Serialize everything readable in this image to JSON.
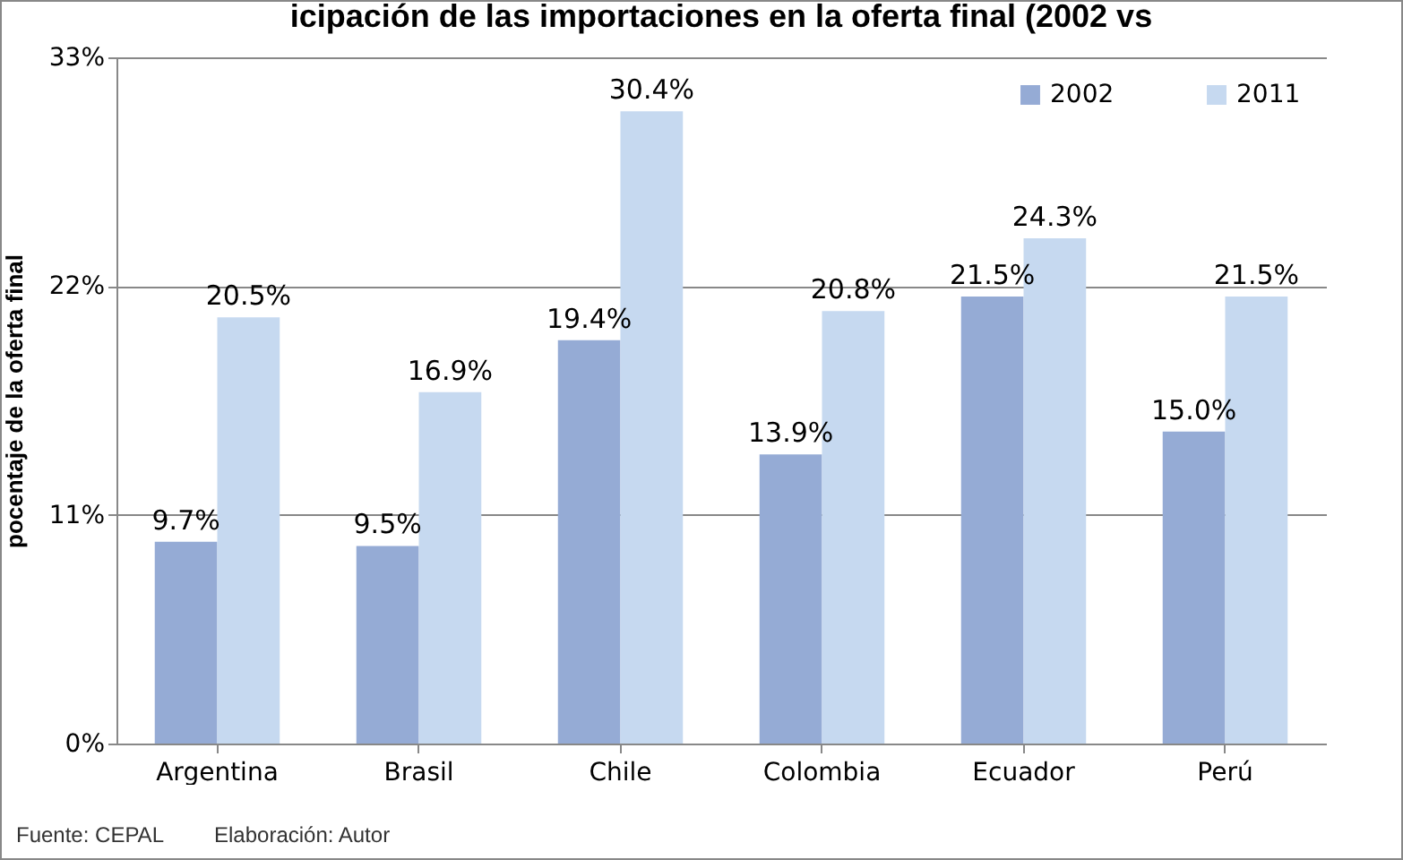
{
  "chart_data": {
    "type": "bar",
    "title": "icipación de las importaciones en la oferta final (2002 vs",
    "ylabel": "pocentaje de la oferta final",
    "categories": [
      "Argentina",
      "Brasil",
      "Chile",
      "Colombia",
      "Ecuador",
      "Perú"
    ],
    "series": [
      {
        "name": "2002",
        "color": "#95abd5",
        "values": [
          9.7,
          9.5,
          19.4,
          13.9,
          21.5,
          15.0
        ],
        "value_labels": [
          "9.7%",
          "9.5%",
          "19.4%",
          "13.9%",
          "21.5%",
          "15.0%"
        ]
      },
      {
        "name": "2011",
        "color": "#c6d9f0",
        "values": [
          20.5,
          16.9,
          30.4,
          20.8,
          24.3,
          21.5
        ],
        "value_labels": [
          "20.5%",
          "16.9%",
          "30.4%",
          "20.8%",
          "24.3%",
          "21.5%"
        ]
      }
    ],
    "ylim": [
      0,
      33
    ],
    "yticks": [
      {
        "value": 0,
        "label": "0%"
      },
      {
        "value": 11,
        "label": "11%"
      },
      {
        "value": 22,
        "label": "22%"
      },
      {
        "value": 33,
        "label": "33%"
      }
    ],
    "grid": "y",
    "legend": "top right",
    "annotations": [
      "Fuente: CEPAL",
      "Elaboración: Autor"
    ]
  }
}
